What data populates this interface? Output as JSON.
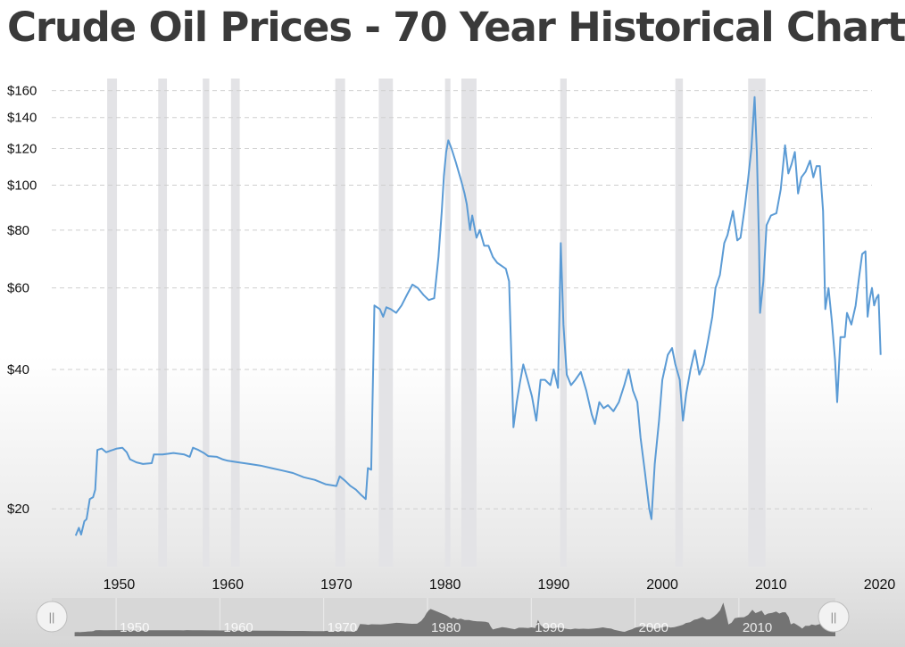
{
  "title": "Crude Oil Prices - 70 Year Historical Chart",
  "chart_data": {
    "type": "line",
    "title": "Crude Oil Prices - 70 Year Historical Chart",
    "xlabel": "",
    "ylabel": "",
    "y_scale": "log",
    "ylim": [
      15,
      170
    ],
    "xlim": [
      1943.8,
      2019.3
    ],
    "y_ticks": [
      {
        "value": 20,
        "label": "$20"
      },
      {
        "value": 40,
        "label": "$40"
      },
      {
        "value": 60,
        "label": "$60"
      },
      {
        "value": 80,
        "label": "$80"
      },
      {
        "value": 100,
        "label": "$100"
      },
      {
        "value": 120,
        "label": "$120"
      },
      {
        "value": 140,
        "label": "$140"
      },
      {
        "value": 160,
        "label": "$160"
      }
    ],
    "x_ticks": [
      {
        "value": 1950,
        "label": "1950"
      },
      {
        "value": 1960,
        "label": "1960"
      },
      {
        "value": 1970,
        "label": "1970"
      },
      {
        "value": 1980,
        "label": "1980"
      },
      {
        "value": 1990,
        "label": "1990"
      },
      {
        "value": 2000,
        "label": "2000"
      },
      {
        "value": 2010,
        "label": "2010"
      },
      {
        "value": 2020,
        "label": "2020"
      }
    ],
    "recessions": [
      [
        1948.9,
        1949.8
      ],
      [
        1953.6,
        1954.4
      ],
      [
        1957.7,
        1958.3
      ],
      [
        1960.3,
        1961.1
      ],
      [
        1969.9,
        1970.8
      ],
      [
        1973.9,
        1975.2
      ],
      [
        1980.0,
        1980.5
      ],
      [
        1981.5,
        1982.9
      ],
      [
        1990.6,
        1991.2
      ],
      [
        2001.2,
        2001.9
      ],
      [
        2007.9,
        2009.5
      ]
    ],
    "grid": true,
    "legend": "none",
    "series": [
      {
        "color": "#5b9bd5",
        "points": [
          [
            1946.0,
            17.5
          ],
          [
            1946.3,
            18.2
          ],
          [
            1946.5,
            17.6
          ],
          [
            1946.8,
            18.8
          ],
          [
            1947.0,
            19.0
          ],
          [
            1947.3,
            21.0
          ],
          [
            1947.6,
            21.2
          ],
          [
            1947.8,
            22.0
          ],
          [
            1948.0,
            26.8
          ],
          [
            1948.4,
            27.0
          ],
          [
            1948.8,
            26.5
          ],
          [
            1949.2,
            26.7
          ],
          [
            1949.8,
            27.0
          ],
          [
            1950.3,
            27.1
          ],
          [
            1950.7,
            26.5
          ],
          [
            1951.0,
            25.6
          ],
          [
            1951.6,
            25.2
          ],
          [
            1952.2,
            25.0
          ],
          [
            1953.0,
            25.1
          ],
          [
            1953.2,
            26.2
          ],
          [
            1954.0,
            26.2
          ],
          [
            1955.0,
            26.4
          ],
          [
            1956.0,
            26.2
          ],
          [
            1956.5,
            25.9
          ],
          [
            1956.8,
            27.1
          ],
          [
            1957.3,
            26.8
          ],
          [
            1957.8,
            26.4
          ],
          [
            1958.2,
            26.0
          ],
          [
            1959.0,
            25.9
          ],
          [
            1959.5,
            25.6
          ],
          [
            1960.0,
            25.4
          ],
          [
            1961.0,
            25.2
          ],
          [
            1962.0,
            25.0
          ],
          [
            1963.0,
            24.8
          ],
          [
            1964.0,
            24.5
          ],
          [
            1965.0,
            24.2
          ],
          [
            1966.0,
            23.9
          ],
          [
            1967.0,
            23.4
          ],
          [
            1968.0,
            23.1
          ],
          [
            1969.0,
            22.6
          ],
          [
            1970.0,
            22.4
          ],
          [
            1970.3,
            23.5
          ],
          [
            1970.8,
            23.0
          ],
          [
            1971.3,
            22.4
          ],
          [
            1971.8,
            22.0
          ],
          [
            1972.3,
            21.4
          ],
          [
            1972.7,
            21.0
          ],
          [
            1972.9,
            24.5
          ],
          [
            1973.2,
            24.3
          ],
          [
            1973.5,
            55.0
          ],
          [
            1974.0,
            54.0
          ],
          [
            1974.3,
            52.0
          ],
          [
            1974.6,
            54.5
          ],
          [
            1975.0,
            54.0
          ],
          [
            1975.5,
            53.0
          ],
          [
            1976.0,
            55.0
          ],
          [
            1976.5,
            58.0
          ],
          [
            1977.0,
            61.0
          ],
          [
            1977.5,
            60.0
          ],
          [
            1978.0,
            58.0
          ],
          [
            1978.5,
            56.5
          ],
          [
            1979.0,
            57.0
          ],
          [
            1979.4,
            70.0
          ],
          [
            1979.7,
            88.0
          ],
          [
            1979.9,
            105.0
          ],
          [
            1980.1,
            118.0
          ],
          [
            1980.3,
            125.0
          ],
          [
            1980.6,
            120.0
          ],
          [
            1981.0,
            112.0
          ],
          [
            1981.5,
            102.0
          ],
          [
            1981.8,
            96.0
          ],
          [
            1982.0,
            91.0
          ],
          [
            1982.3,
            80.0
          ],
          [
            1982.5,
            86.0
          ],
          [
            1982.9,
            77.0
          ],
          [
            1983.2,
            80.0
          ],
          [
            1983.6,
            74.0
          ],
          [
            1984.0,
            74.0
          ],
          [
            1984.4,
            70.0
          ],
          [
            1984.8,
            68.0
          ],
          [
            1985.2,
            67.0
          ],
          [
            1985.6,
            66.0
          ],
          [
            1985.9,
            62.0
          ],
          [
            1986.1,
            43.0
          ],
          [
            1986.3,
            30.0
          ],
          [
            1986.6,
            34.0
          ],
          [
            1986.9,
            37.5
          ],
          [
            1987.2,
            41.0
          ],
          [
            1987.6,
            38.0
          ],
          [
            1988.0,
            35.0
          ],
          [
            1988.4,
            31.0
          ],
          [
            1988.8,
            38.0
          ],
          [
            1989.2,
            38.0
          ],
          [
            1989.7,
            37.0
          ],
          [
            1990.0,
            40.0
          ],
          [
            1990.4,
            36.5
          ],
          [
            1990.65,
            75.0
          ],
          [
            1990.9,
            50.0
          ],
          [
            1991.2,
            39.0
          ],
          [
            1991.6,
            37.0
          ],
          [
            1992.0,
            38.0
          ],
          [
            1992.5,
            39.5
          ],
          [
            1993.0,
            36.0
          ],
          [
            1993.5,
            32.0
          ],
          [
            1993.8,
            30.5
          ],
          [
            1994.2,
            34.0
          ],
          [
            1994.6,
            33.0
          ],
          [
            1995.0,
            33.5
          ],
          [
            1995.5,
            32.5
          ],
          [
            1996.0,
            34.0
          ],
          [
            1996.5,
            37.0
          ],
          [
            1996.9,
            40.0
          ],
          [
            1997.3,
            36.0
          ],
          [
            1997.7,
            34.0
          ],
          [
            1998.0,
            28.5
          ],
          [
            1998.4,
            24.0
          ],
          [
            1998.8,
            20.0
          ],
          [
            1999.0,
            19.0
          ],
          [
            1999.3,
            25.0
          ],
          [
            1999.7,
            31.0
          ],
          [
            2000.0,
            38.0
          ],
          [
            2000.5,
            43.0
          ],
          [
            2000.9,
            44.5
          ],
          [
            2001.2,
            41.0
          ],
          [
            2001.6,
            38.0
          ],
          [
            2001.9,
            31.0
          ],
          [
            2002.2,
            35.5
          ],
          [
            2002.6,
            40.0
          ],
          [
            2003.0,
            44.0
          ],
          [
            2003.4,
            39.0
          ],
          [
            2003.8,
            41.0
          ],
          [
            2004.2,
            46.0
          ],
          [
            2004.6,
            52.0
          ],
          [
            2004.9,
            60.0
          ],
          [
            2005.3,
            64.0
          ],
          [
            2005.7,
            75.0
          ],
          [
            2006.0,
            78.0
          ],
          [
            2006.5,
            88.0
          ],
          [
            2006.9,
            76.0
          ],
          [
            2007.2,
            77.0
          ],
          [
            2007.6,
            90.0
          ],
          [
            2007.9,
            103.0
          ],
          [
            2008.2,
            120.0
          ],
          [
            2008.5,
            155.0
          ],
          [
            2008.7,
            118.0
          ],
          [
            2008.9,
            75.0
          ],
          [
            2009.0,
            53.0
          ],
          [
            2009.3,
            62.0
          ],
          [
            2009.6,
            82.0
          ],
          [
            2010.0,
            86.0
          ],
          [
            2010.5,
            87.0
          ],
          [
            2010.9,
            98.0
          ],
          [
            2011.3,
            122.0
          ],
          [
            2011.6,
            106.0
          ],
          [
            2011.9,
            111.0
          ],
          [
            2012.2,
            118.0
          ],
          [
            2012.5,
            96.0
          ],
          [
            2012.8,
            104.0
          ],
          [
            2013.2,
            107.0
          ],
          [
            2013.6,
            113.0
          ],
          [
            2013.9,
            104.0
          ],
          [
            2014.2,
            110.0
          ],
          [
            2014.5,
            110.0
          ],
          [
            2014.8,
            88.0
          ],
          [
            2015.0,
            54.0
          ],
          [
            2015.3,
            60.0
          ],
          [
            2015.6,
            51.0
          ],
          [
            2015.9,
            42.0
          ],
          [
            2016.1,
            34.0
          ],
          [
            2016.4,
            47.0
          ],
          [
            2016.8,
            47.0
          ],
          [
            2017.0,
            53.0
          ],
          [
            2017.4,
            50.0
          ],
          [
            2017.8,
            55.0
          ],
          [
            2018.1,
            63.0
          ],
          [
            2018.4,
            71.0
          ],
          [
            2018.7,
            72.0
          ],
          [
            2018.9,
            52.0
          ],
          [
            2019.1,
            57.0
          ],
          [
            2019.3,
            60.0
          ],
          [
            2019.5,
            55.0
          ],
          [
            2019.7,
            57.0
          ],
          [
            2019.9,
            58.0
          ],
          [
            2020.0,
            50.0
          ],
          [
            2020.1,
            43.0
          ]
        ]
      }
    ]
  },
  "navigator": {
    "tick_labels": [
      "1950",
      "1960",
      "1970",
      "1980",
      "1990",
      "2000",
      "2010"
    ],
    "left_handle_glyph": "||",
    "right_handle_glyph": "||"
  }
}
